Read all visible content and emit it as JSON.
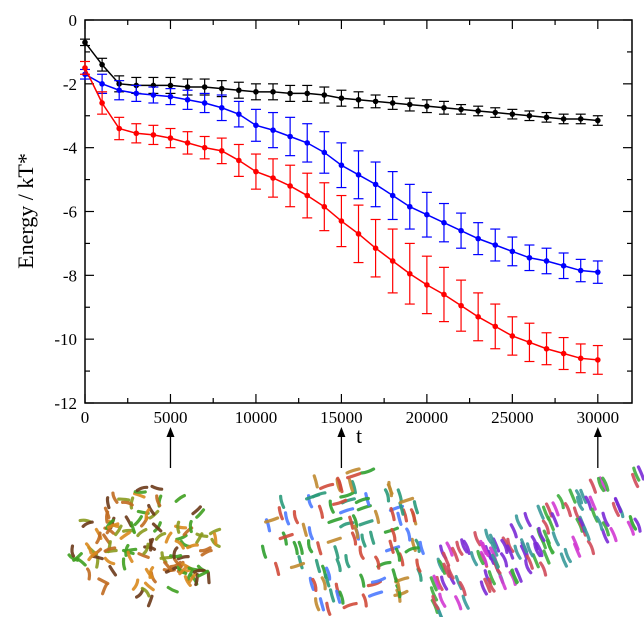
{
  "chart_data": {
    "type": "line",
    "xlabel": "t",
    "ylabel": "Energy / kT*",
    "xlim": [
      0,
      32000
    ],
    "ylim": [
      -12,
      0
    ],
    "xticks": [
      0,
      5000,
      10000,
      15000,
      20000,
      25000,
      30000
    ],
    "xtick_labels": [
      "0",
      "5000",
      "10000",
      "15000",
      "20000",
      "25000",
      "30000"
    ],
    "yticks": [
      0,
      -2,
      -4,
      -6,
      -8,
      -10,
      -12
    ],
    "ytick_labels": [
      "0",
      "-2",
      "-4",
      "-6",
      "-8",
      "-10",
      "-12"
    ],
    "grid": false,
    "legend": "none",
    "x": [
      0,
      1000,
      2000,
      3000,
      4000,
      5000,
      6000,
      7000,
      8000,
      9000,
      10000,
      11000,
      12000,
      13000,
      14000,
      15000,
      16000,
      17000,
      18000,
      19000,
      20000,
      21000,
      22000,
      23000,
      24000,
      25000,
      26000,
      27000,
      28000,
      29000,
      30000
    ],
    "series": [
      {
        "color": "#000000",
        "values": [
          -0.7,
          -1.4,
          -2.0,
          -2.05,
          -2.05,
          -2.05,
          -2.1,
          -2.1,
          -2.15,
          -2.2,
          -2.25,
          -2.25,
          -2.3,
          -2.3,
          -2.35,
          -2.45,
          -2.5,
          -2.55,
          -2.6,
          -2.65,
          -2.7,
          -2.75,
          -2.8,
          -2.85,
          -2.9,
          -2.95,
          -3.0,
          -3.05,
          -3.1,
          -3.1,
          -3.15
        ],
        "errors": [
          0.1,
          0.2,
          0.25,
          0.25,
          0.25,
          0.25,
          0.25,
          0.25,
          0.25,
          0.25,
          0.25,
          0.25,
          0.25,
          0.25,
          0.25,
          0.25,
          0.25,
          0.2,
          0.2,
          0.2,
          0.2,
          0.2,
          0.15,
          0.15,
          0.15,
          0.15,
          0.15,
          0.15,
          0.15,
          0.15,
          0.15
        ]
      },
      {
        "color": "#0000ff",
        "values": [
          -1.7,
          -2.0,
          -2.2,
          -2.3,
          -2.35,
          -2.4,
          -2.5,
          -2.6,
          -2.75,
          -2.95,
          -3.3,
          -3.45,
          -3.65,
          -3.85,
          -4.15,
          -4.55,
          -4.85,
          -5.15,
          -5.5,
          -5.85,
          -6.1,
          -6.35,
          -6.6,
          -6.85,
          -7.05,
          -7.25,
          -7.45,
          -7.55,
          -7.7,
          -7.85,
          -7.9
        ],
        "errors": [
          0.15,
          0.3,
          0.3,
          0.25,
          0.25,
          0.25,
          0.3,
          0.3,
          0.4,
          0.4,
          0.5,
          0.55,
          0.6,
          0.6,
          0.65,
          0.7,
          0.75,
          0.7,
          0.75,
          0.7,
          0.7,
          0.6,
          0.55,
          0.5,
          0.5,
          0.45,
          0.4,
          0.4,
          0.4,
          0.35,
          0.35
        ]
      },
      {
        "color": "#ff0000",
        "values": [
          -1.5,
          -2.6,
          -3.4,
          -3.55,
          -3.6,
          -3.7,
          -3.85,
          -4.0,
          -4.1,
          -4.4,
          -4.75,
          -4.95,
          -5.2,
          -5.5,
          -5.85,
          -6.3,
          -6.7,
          -7.15,
          -7.55,
          -7.95,
          -8.3,
          -8.6,
          -8.95,
          -9.3,
          -9.6,
          -9.9,
          -10.1,
          -10.3,
          -10.45,
          -10.6,
          -10.65
        ],
        "errors": [
          0.2,
          0.35,
          0.35,
          0.3,
          0.3,
          0.3,
          0.35,
          0.35,
          0.4,
          0.5,
          0.55,
          0.6,
          0.65,
          0.7,
          0.75,
          0.8,
          0.9,
          0.9,
          1.0,
          0.95,
          0.9,
          0.85,
          0.8,
          0.75,
          0.7,
          0.6,
          0.6,
          0.5,
          0.5,
          0.45,
          0.45
        ]
      }
    ],
    "annotations": {
      "arrow_targets": [
        5000,
        15000,
        30000
      ],
      "snapshots": [
        {
          "colors": [
            "#d98a1e",
            "#8a9a1e",
            "#3fa020",
            "#c06a20",
            "#6b3a1a"
          ],
          "n": 120,
          "seed": 7
        },
        {
          "colors": [
            "#2fa02f",
            "#4c7aff",
            "#d04a3a",
            "#c08a30",
            "#2a9a7a"
          ],
          "n": 110,
          "seed": 21
        },
        {
          "colors": [
            "#7a2bd6",
            "#d13ad1",
            "#d04a5a",
            "#3fae3f",
            "#3a9a9a"
          ],
          "n": 130,
          "seed": 43
        }
      ]
    }
  }
}
